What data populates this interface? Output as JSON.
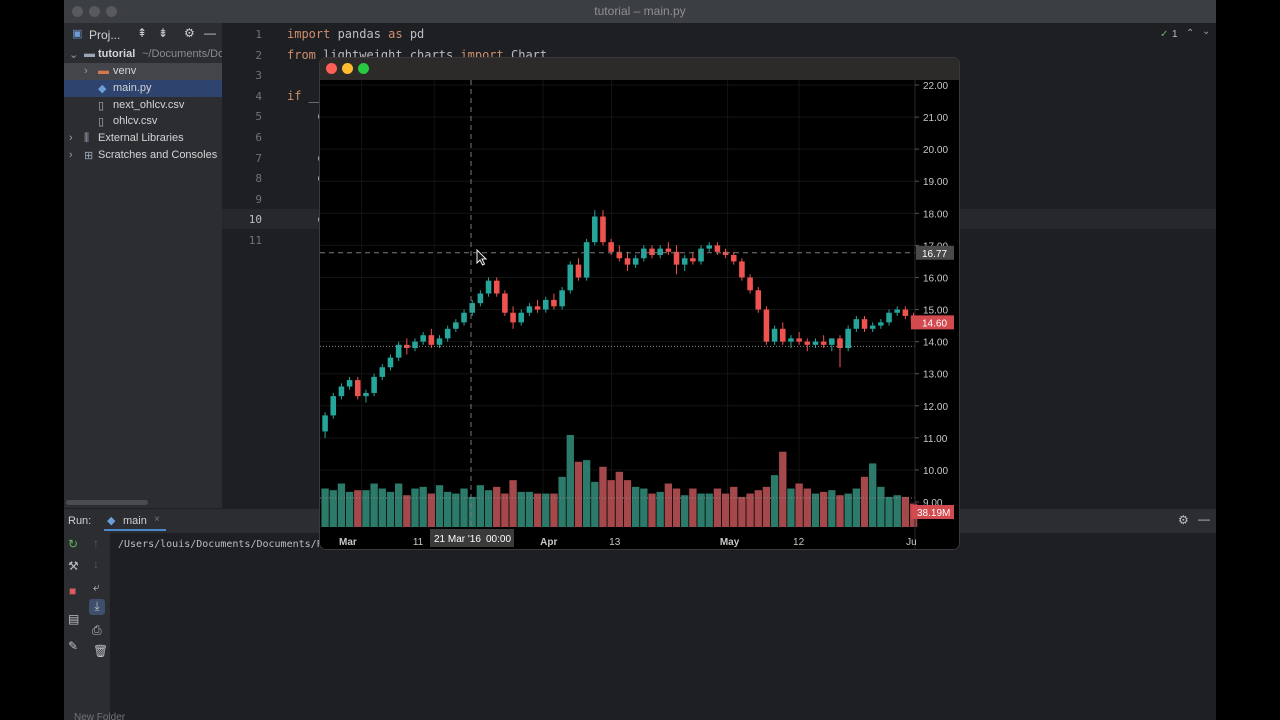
{
  "window": {
    "title": "tutorial – main.py"
  },
  "project": {
    "header_label": "Proj...",
    "tree": [
      {
        "label": "tutorial",
        "suffix": "~/Documents/Do"
      },
      {
        "label": "venv"
      },
      {
        "label": "main.py"
      },
      {
        "label": "next_ohlcv.csv"
      },
      {
        "label": "ohlcv.csv"
      },
      {
        "label": "External Libraries"
      },
      {
        "label": "Scratches and Consoles"
      }
    ]
  },
  "editor": {
    "line_numbers": [
      "1",
      "2",
      "3",
      "4",
      "5",
      "6",
      "7",
      "8",
      "9",
      "10",
      "11"
    ],
    "lines": [
      {
        "kw1": "import",
        "mid": " pandas ",
        "kw2": "as",
        "end": " pd"
      },
      {
        "kw1": "from",
        "mid": " lightweight_charts ",
        "kw2": "import",
        "end": " Chart"
      },
      {
        "text": ""
      },
      {
        "kw1": "if",
        "mid": " __",
        "kw2": "",
        "end": ""
      },
      {
        "text": "c"
      },
      {
        "text": ""
      },
      {
        "text": "c"
      },
      {
        "text": "c"
      },
      {
        "text": ""
      },
      {
        "text": "c"
      },
      {
        "text": ""
      }
    ],
    "inspection_count": "1"
  },
  "run": {
    "label": "Run:",
    "tab": "main",
    "console_text": "/Users/louis/Documents/Documents/Pro"
  },
  "bottom_bar": {
    "hint": "New Folder"
  },
  "chart_window": {
    "colors": {
      "up": "#26a69a",
      "down": "#ef5350",
      "background": "#000000",
      "price_badge": "#d2494e"
    },
    "crosshair_date": "21 Mar '16",
    "crosshair_time": "00:00",
    "crosshair_price": "16.77",
    "last_price": "14.60",
    "last_volume": "38.19M"
  },
  "chart_data": {
    "type": "candlestick",
    "y_axis_ticks": [
      "22.00",
      "21.00",
      "20.00",
      "19.00",
      "18.00",
      "17.00",
      "16.00",
      "15.00",
      "14.00",
      "13.00",
      "12.00",
      "11.00",
      "10.00",
      "9.00"
    ],
    "ylim": [
      9.0,
      22.0
    ],
    "x_tick_labels": [
      "Mar",
      "11",
      "Apr",
      "13",
      "May",
      "12",
      "Ju"
    ],
    "ohlc": [
      [
        11.2,
        11.8,
        11.0,
        11.7
      ],
      [
        11.7,
        12.4,
        11.6,
        12.3
      ],
      [
        12.3,
        12.7,
        12.2,
        12.6
      ],
      [
        12.6,
        12.9,
        12.5,
        12.8
      ],
      [
        12.8,
        12.9,
        12.2,
        12.3
      ],
      [
        12.3,
        12.5,
        12.1,
        12.4
      ],
      [
        12.4,
        13.0,
        12.3,
        12.9
      ],
      [
        12.9,
        13.3,
        12.8,
        13.2
      ],
      [
        13.2,
        13.6,
        13.1,
        13.5
      ],
      [
        13.5,
        14.0,
        13.4,
        13.9
      ],
      [
        13.9,
        14.1,
        13.6,
        13.8
      ],
      [
        13.8,
        14.1,
        13.7,
        14.0
      ],
      [
        14.0,
        14.3,
        13.9,
        14.2
      ],
      [
        14.2,
        14.4,
        13.8,
        13.9
      ],
      [
        13.9,
        14.2,
        13.8,
        14.1
      ],
      [
        14.1,
        14.5,
        14.0,
        14.4
      ],
      [
        14.4,
        14.7,
        14.3,
        14.6
      ],
      [
        14.6,
        15.0,
        14.5,
        14.9
      ],
      [
        14.9,
        15.3,
        14.8,
        15.2
      ],
      [
        15.2,
        15.6,
        15.1,
        15.5
      ],
      [
        15.5,
        16.0,
        15.4,
        15.9
      ],
      [
        15.9,
        16.0,
        15.4,
        15.5
      ],
      [
        15.5,
        15.6,
        14.8,
        14.9
      ],
      [
        14.9,
        15.1,
        14.4,
        14.6
      ],
      [
        14.6,
        15.0,
        14.5,
        14.9
      ],
      [
        14.9,
        15.2,
        14.8,
        15.1
      ],
      [
        15.1,
        15.3,
        14.9,
        15.0
      ],
      [
        15.0,
        15.4,
        14.9,
        15.3
      ],
      [
        15.3,
        15.5,
        15.0,
        15.1
      ],
      [
        15.1,
        15.7,
        15.0,
        15.6
      ],
      [
        15.6,
        16.5,
        15.5,
        16.4
      ],
      [
        16.4,
        16.6,
        15.9,
        16.0
      ],
      [
        16.0,
        17.2,
        15.9,
        17.1
      ],
      [
        17.1,
        18.1,
        17.0,
        17.9
      ],
      [
        17.9,
        18.1,
        17.0,
        17.1
      ],
      [
        17.1,
        17.2,
        16.7,
        16.8
      ],
      [
        16.8,
        17.0,
        16.5,
        16.6
      ],
      [
        16.6,
        16.8,
        16.2,
        16.4
      ],
      [
        16.4,
        16.7,
        16.3,
        16.6
      ],
      [
        16.6,
        17.0,
        16.5,
        16.9
      ],
      [
        16.9,
        17.0,
        16.6,
        16.7
      ],
      [
        16.7,
        17.0,
        16.6,
        16.9
      ],
      [
        16.9,
        17.1,
        16.7,
        16.8
      ],
      [
        16.8,
        17.0,
        16.1,
        16.4
      ],
      [
        16.4,
        16.7,
        16.2,
        16.6
      ],
      [
        16.6,
        16.8,
        16.4,
        16.5
      ],
      [
        16.5,
        17.0,
        16.4,
        16.9
      ],
      [
        16.9,
        17.1,
        16.8,
        17.0
      ],
      [
        17.0,
        17.1,
        16.7,
        16.8
      ],
      [
        16.8,
        16.9,
        16.6,
        16.7
      ],
      [
        16.7,
        16.8,
        16.4,
        16.5
      ],
      [
        16.5,
        16.6,
        15.9,
        16.0
      ],
      [
        16.0,
        16.1,
        15.5,
        15.6
      ],
      [
        15.6,
        15.7,
        14.9,
        15.0
      ],
      [
        15.0,
        15.1,
        13.9,
        14.0
      ],
      [
        14.0,
        14.5,
        13.9,
        14.4
      ],
      [
        14.4,
        14.6,
        13.9,
        14.0
      ],
      [
        14.0,
        14.2,
        13.8,
        14.1
      ],
      [
        14.1,
        14.3,
        13.9,
        14.0
      ],
      [
        14.0,
        14.1,
        13.7,
        13.9
      ],
      [
        13.9,
        14.1,
        13.8,
        14.0
      ],
      [
        14.0,
        14.2,
        13.8,
        13.9
      ],
      [
        13.9,
        14.1,
        13.7,
        14.1
      ],
      [
        14.1,
        14.2,
        13.2,
        13.8
      ],
      [
        13.8,
        14.5,
        13.7,
        14.4
      ],
      [
        14.4,
        14.8,
        14.3,
        14.7
      ],
      [
        14.7,
        14.8,
        14.3,
        14.4
      ],
      [
        14.4,
        14.6,
        14.3,
        14.5
      ],
      [
        14.5,
        14.7,
        14.4,
        14.6
      ],
      [
        14.6,
        15.0,
        14.5,
        14.9
      ],
      [
        14.9,
        15.1,
        14.8,
        15.0
      ],
      [
        15.0,
        15.1,
        14.7,
        14.8
      ],
      [
        14.8,
        14.9,
        14.5,
        14.6
      ]
    ],
    "volume": [
      2.3,
      2.2,
      2.6,
      2.1,
      2.2,
      2.2,
      2.6,
      2.3,
      2.1,
      2.6,
      1.9,
      2.3,
      2.4,
      2.0,
      2.5,
      2.1,
      2.0,
      2.3,
      1.8,
      2.5,
      2.2,
      2.4,
      2.0,
      2.8,
      2.1,
      2.1,
      2.0,
      2.0,
      2.0,
      3.0,
      5.5,
      3.9,
      4.0,
      2.7,
      3.6,
      2.8,
      3.3,
      2.8,
      2.4,
      2.3,
      2.0,
      2.1,
      2.6,
      2.3,
      1.9,
      2.3,
      2.0,
      2.0,
      2.3,
      2.0,
      2.4,
      1.8,
      2.0,
      2.2,
      2.4,
      3.1,
      4.5,
      2.3,
      2.6,
      2.3,
      2.0,
      2.1,
      2.2,
      1.9,
      2.0,
      2.3,
      3.0,
      3.8,
      2.4,
      1.8,
      1.9,
      1.8,
      1.4
    ]
  }
}
